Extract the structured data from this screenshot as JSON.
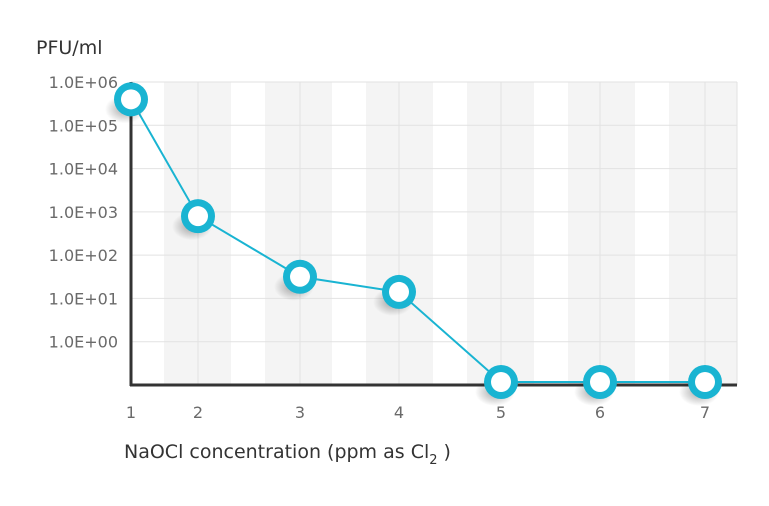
{
  "chart_data": {
    "type": "line",
    "title": "",
    "ylabel": "PFU/ml",
    "xlabel": "NaOCl concentration (ppm as Cl",
    "xlabel_subscript": "2",
    "xlabel_suffix": " )",
    "x": [
      1,
      2,
      3,
      4,
      5,
      6,
      7
    ],
    "x_tick_labels": [
      "1",
      "2",
      "3",
      "4",
      "5",
      "6",
      "7"
    ],
    "y_tick_labels": [
      "1.0E+00",
      "1.0E+01",
      "1.0E+02",
      "1.0E+03",
      "1.0E+04",
      "1.0E+05",
      "1.0E+06"
    ],
    "y_scale": "log",
    "ylim_log10": [
      -1,
      6
    ],
    "series": [
      {
        "log10_values": [
          5.6,
          2.9,
          1.5,
          1.15,
          -1,
          -1,
          -1
        ],
        "values": [
          400000,
          800,
          30,
          14,
          0,
          0,
          0
        ]
      }
    ],
    "line_color": "#19b4d2",
    "marker_fill": "#ffffff",
    "band_color": "#f4f4f4",
    "grid": true
  }
}
